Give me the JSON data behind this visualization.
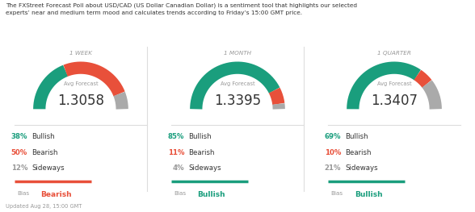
{
  "header_text": "The FXStreet Forecast Poll about USD/CAD (US Dollar Canadian Dollar) is a sentiment tool that highlights our selected\nexperts’ near and medium term mood and calculates trends according to Friday’s 15:00 GMT price.",
  "footer_text": "Updated Aug 28, 15:00 GMT",
  "panels": [
    {
      "title": "1 WEEK",
      "avg_forecast": "1.3058",
      "bullish_pct": 38,
      "bearish_pct": 50,
      "sideways_pct": 12,
      "bias": "Bearish",
      "bias_color": "#e8503a",
      "bias_bar_color": "#e8503a"
    },
    {
      "title": "1 MONTH",
      "avg_forecast": "1.3395",
      "bullish_pct": 85,
      "bearish_pct": 11,
      "sideways_pct": 4,
      "bias": "Bullish",
      "bias_color": "#1a9e7d",
      "bias_bar_color": "#1a9e7d"
    },
    {
      "title": "1 QUARTER",
      "avg_forecast": "1.3407",
      "bullish_pct": 69,
      "bearish_pct": 10,
      "sideways_pct": 21,
      "bias": "Bullish",
      "bias_color": "#1a9e7d",
      "bias_bar_color": "#1a9e7d"
    }
  ],
  "colors": {
    "bullish": "#1a9e7d",
    "bearish": "#e8503a",
    "sideways": "#aaaaaa",
    "background": "#ffffff",
    "text_dark": "#333333",
    "text_light": "#999999",
    "separator": "#dddddd"
  }
}
